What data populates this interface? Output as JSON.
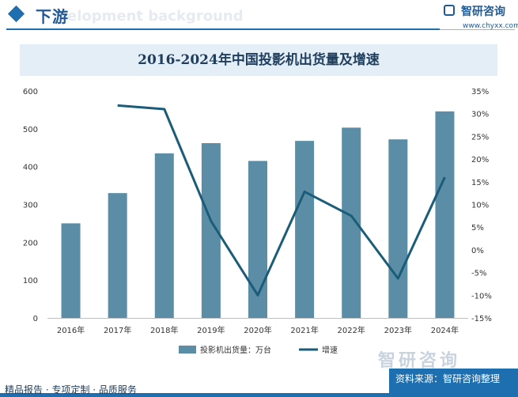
{
  "header": {
    "section_title": "下游",
    "bg_word": "elopment background",
    "logo_text": "智研咨询",
    "logo_url": "www.chyxx.com"
  },
  "footer": {
    "left_text": "精品报告 · 专项定制 · 品质服务",
    "source_text": "资料来源：智研咨询整理",
    "watermark_logo": "智研咨询"
  },
  "colors": {
    "bar": "#5b8ea6",
    "line": "#1b5c78",
    "accent": "#1e6fb0",
    "title_band": "#e3eef7"
  },
  "chart_data": {
    "type": "bar",
    "title": "2016-2024年中国投影机出货量及增速",
    "categories": [
      "2016年",
      "2017年",
      "2018年",
      "2019年",
      "2020年",
      "2021年",
      "2022年",
      "2023年",
      "2024年"
    ],
    "series": [
      {
        "name": "投影机出货量：万台",
        "type": "bar",
        "axis": "left",
        "values": [
          250,
          330,
          435,
          462,
          415,
          468,
          503,
          472,
          546
        ]
      },
      {
        "name": "增速",
        "type": "line",
        "axis": "right",
        "values": [
          null,
          31.8,
          31.0,
          6.3,
          -10.0,
          12.8,
          7.5,
          -6.3,
          16.0
        ]
      }
    ],
    "y_left": {
      "ticks": [
        "0",
        "100",
        "200",
        "300",
        "400",
        "500",
        "600"
      ],
      "ylim": [
        0,
        600
      ]
    },
    "y_right": {
      "ticks": [
        "-15%",
        "-10%",
        "-5%",
        "0%",
        "5%",
        "10%",
        "15%",
        "20%",
        "25%",
        "30%",
        "35%"
      ],
      "ylim": [
        -15,
        35
      ]
    },
    "legend": {
      "position": "bottom"
    },
    "grid": false
  }
}
